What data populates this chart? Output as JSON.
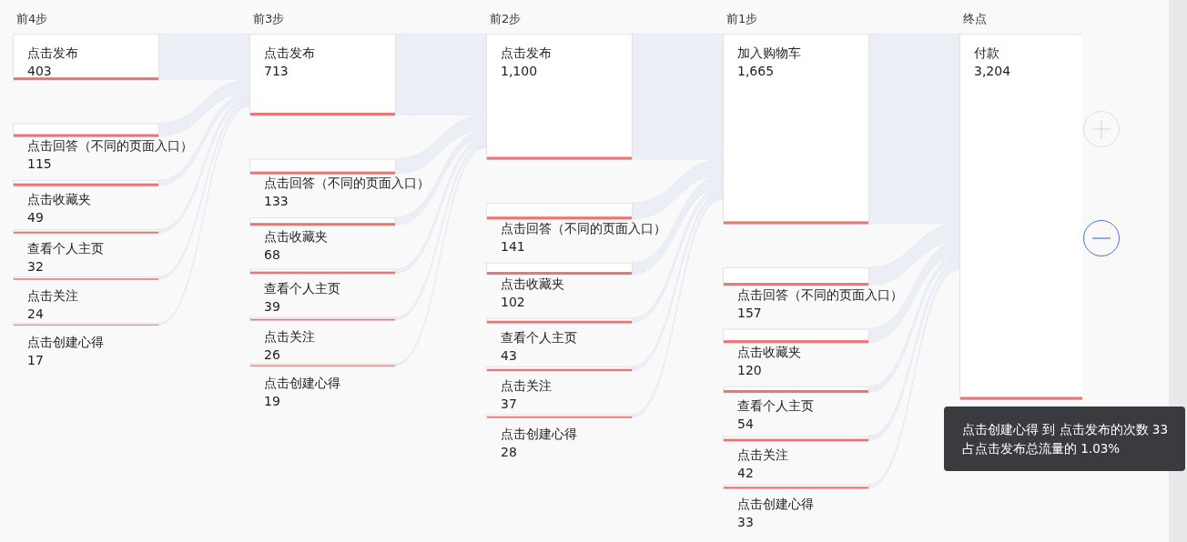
{
  "chart_data": [
    {
      "type": "other",
      "title": "前4步",
      "categories": [
        "点击发布",
        "点击回答（不同的页面入口）",
        "点击收藏夹",
        "查看个人主页",
        "点击关注",
        "点击创建心得"
      ],
      "values": [
        403,
        115,
        49,
        32,
        24,
        17
      ],
      "value_labels": [
        "403",
        "115",
        "49",
        "32",
        "24",
        "17"
      ]
    },
    {
      "type": "other",
      "title": "前3步",
      "categories": [
        "点击发布",
        "点击回答（不同的页面入口）",
        "点击收藏夹",
        "查看个人主页",
        "点击关注",
        "点击创建心得"
      ],
      "values": [
        713,
        133,
        68,
        39,
        26,
        19
      ],
      "value_labels": [
        "713",
        "133",
        "68",
        "39",
        "26",
        "19"
      ]
    },
    {
      "type": "other",
      "title": "前2步",
      "categories": [
        "点击发布",
        "点击回答（不同的页面入口）",
        "点击收藏夹",
        "查看个人主页",
        "点击关注",
        "点击创建心得"
      ],
      "values": [
        1100,
        141,
        102,
        43,
        37,
        28
      ],
      "value_labels": [
        "1,100",
        "141",
        "102",
        "43",
        "37",
        "28"
      ]
    },
    {
      "type": "other",
      "title": "前1步",
      "categories": [
        "加入购物车",
        "点击回答（不同的页面入口）",
        "点击收藏夹",
        "查看个人主页",
        "点击关注",
        "点击创建心得"
      ],
      "values": [
        1665,
        157,
        120,
        54,
        42,
        33
      ],
      "value_labels": [
        "1,665",
        "157",
        "120",
        "54",
        "42",
        "33"
      ]
    },
    {
      "type": "other",
      "title": "终点",
      "categories": [
        "付款"
      ],
      "values": [
        3204
      ],
      "value_labels": [
        "3,204"
      ],
      "annotations": [
        "点击创建心得 到 点击发布的次数 33",
        "占点击发布总流量的 1.03%"
      ]
    }
  ]
}
